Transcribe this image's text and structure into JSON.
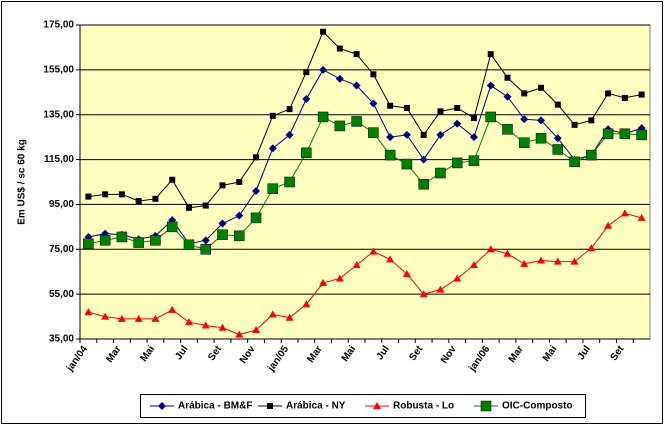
{
  "chart_data": {
    "type": "line",
    "y_label": "Em US$ / sc 60 kg",
    "categories": [
      "jan/04",
      null,
      "Mar",
      null,
      "Mai",
      null,
      "Jul",
      null,
      "Set",
      null,
      "Nov",
      null,
      "jan/05",
      null,
      "Mar",
      null,
      "Mai",
      null,
      "Jul",
      null,
      "Set",
      null,
      "Nov",
      null,
      "jan/06",
      null,
      "Mar",
      null,
      "Mai",
      null,
      "Jul",
      null,
      "Set",
      null
    ],
    "series": [
      {
        "name": "Arábica - BM&F",
        "color": "#000080",
        "marker": "diamond",
        "values": [
          80.5,
          82,
          81.5,
          79.5,
          81,
          88,
          77.5,
          79,
          86.5,
          90,
          101,
          120,
          126,
          142,
          155,
          151,
          148,
          140,
          125,
          126,
          115,
          126,
          131,
          125,
          148,
          143,
          133,
          132.5,
          124.5,
          115,
          117,
          128.5,
          126.5,
          129
        ]
      },
      {
        "name": "Arábica - NY",
        "color": "#000000",
        "marker": "square",
        "values": [
          98.5,
          99.5,
          99.5,
          96.5,
          97.5,
          106,
          93.5,
          94.5,
          103.5,
          105,
          116,
          134.5,
          137.5,
          154,
          172,
          164.5,
          162,
          153,
          139,
          138,
          126,
          136.5,
          138,
          133.5,
          162,
          151.5,
          144.5,
          147,
          139.5,
          130.5,
          132.5,
          144.5,
          142.5,
          144
        ]
      },
      {
        "name": "Robusta - Lo",
        "color": "#ff0000",
        "marker": "triangle",
        "values": [
          47,
          45,
          44,
          44,
          44,
          48,
          42.5,
          41,
          40,
          37,
          39,
          46,
          44.5,
          50.5,
          60,
          62,
          68,
          74,
          70.5,
          64,
          55,
          57,
          62,
          68,
          75,
          73,
          68.5,
          70,
          69.5,
          69.5,
          75.5,
          85.5,
          91,
          89
        ]
      },
      {
        "name": "OIC-Composto",
        "color": "#008000",
        "marker": "bigsquare",
        "values": [
          77.5,
          79,
          80.5,
          78,
          79,
          85,
          77,
          75,
          81.5,
          81,
          89,
          102,
          105,
          118,
          134,
          130,
          132,
          127,
          117,
          113,
          104,
          109,
          113.5,
          114.5,
          134,
          128.5,
          122.5,
          124.5,
          119.5,
          114,
          117,
          126.5,
          126.5,
          126
        ]
      }
    ],
    "ylim": [
      35,
      175
    ],
    "yticks": [
      {
        "value": 35,
        "label": "35,00"
      },
      {
        "value": 55,
        "label": "55,00"
      },
      {
        "value": 75,
        "label": "75,00"
      },
      {
        "value": 95,
        "label": "95,00"
      },
      {
        "value": 115,
        "label": "115,00"
      },
      {
        "value": 135,
        "label": "135,00"
      },
      {
        "value": 155,
        "label": "155,00"
      },
      {
        "value": 175,
        "label": "175,00"
      }
    ],
    "grid": true,
    "legend": "bottom",
    "background": "#ffffc0"
  }
}
